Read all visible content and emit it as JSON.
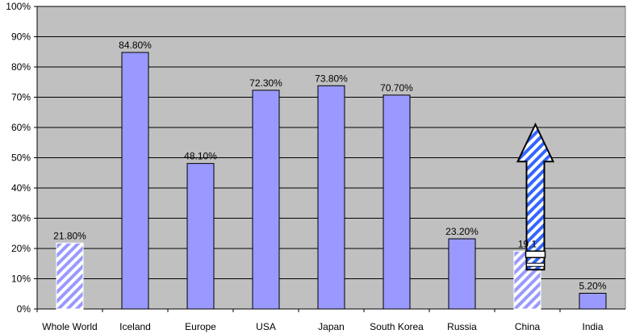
{
  "chart_data": {
    "type": "bar",
    "categories": [
      "Whole World",
      "Iceland",
      "Europe",
      "USA",
      "Japan",
      "South Korea",
      "Russia",
      "China",
      "India"
    ],
    "values": [
      21.8,
      84.8,
      48.1,
      72.3,
      73.8,
      70.7,
      23.2,
      19.1,
      5.2
    ],
    "value_labels": [
      "21.80%",
      "84.80%",
      "48.10%",
      "72.30%",
      "73.80%",
      "70.70%",
      "23.20%",
      "19.1",
      "5.20%"
    ],
    "y_ticks": [
      "0%",
      "10%",
      "20%",
      "30%",
      "40%",
      "50%",
      "60%",
      "70%",
      "80%",
      "90%",
      "100%"
    ],
    "ylim": [
      0,
      100
    ],
    "grid": true,
    "title": "",
    "xlabel": "",
    "ylabel": "",
    "hatched_categories": [
      "Whole World",
      "China"
    ],
    "annotations": [
      {
        "type": "up-arrow",
        "category": "China",
        "style": "hatched",
        "from_value": 13,
        "to_value": 61
      }
    ],
    "colors": {
      "plot_background": "#c0c0c0",
      "bar_fill": "#9999ff",
      "bar_stroke": "#000000",
      "hatch_stripe": "#9999ff",
      "arrow_stripe": "#3366ff",
      "gridline": "#000000"
    }
  }
}
